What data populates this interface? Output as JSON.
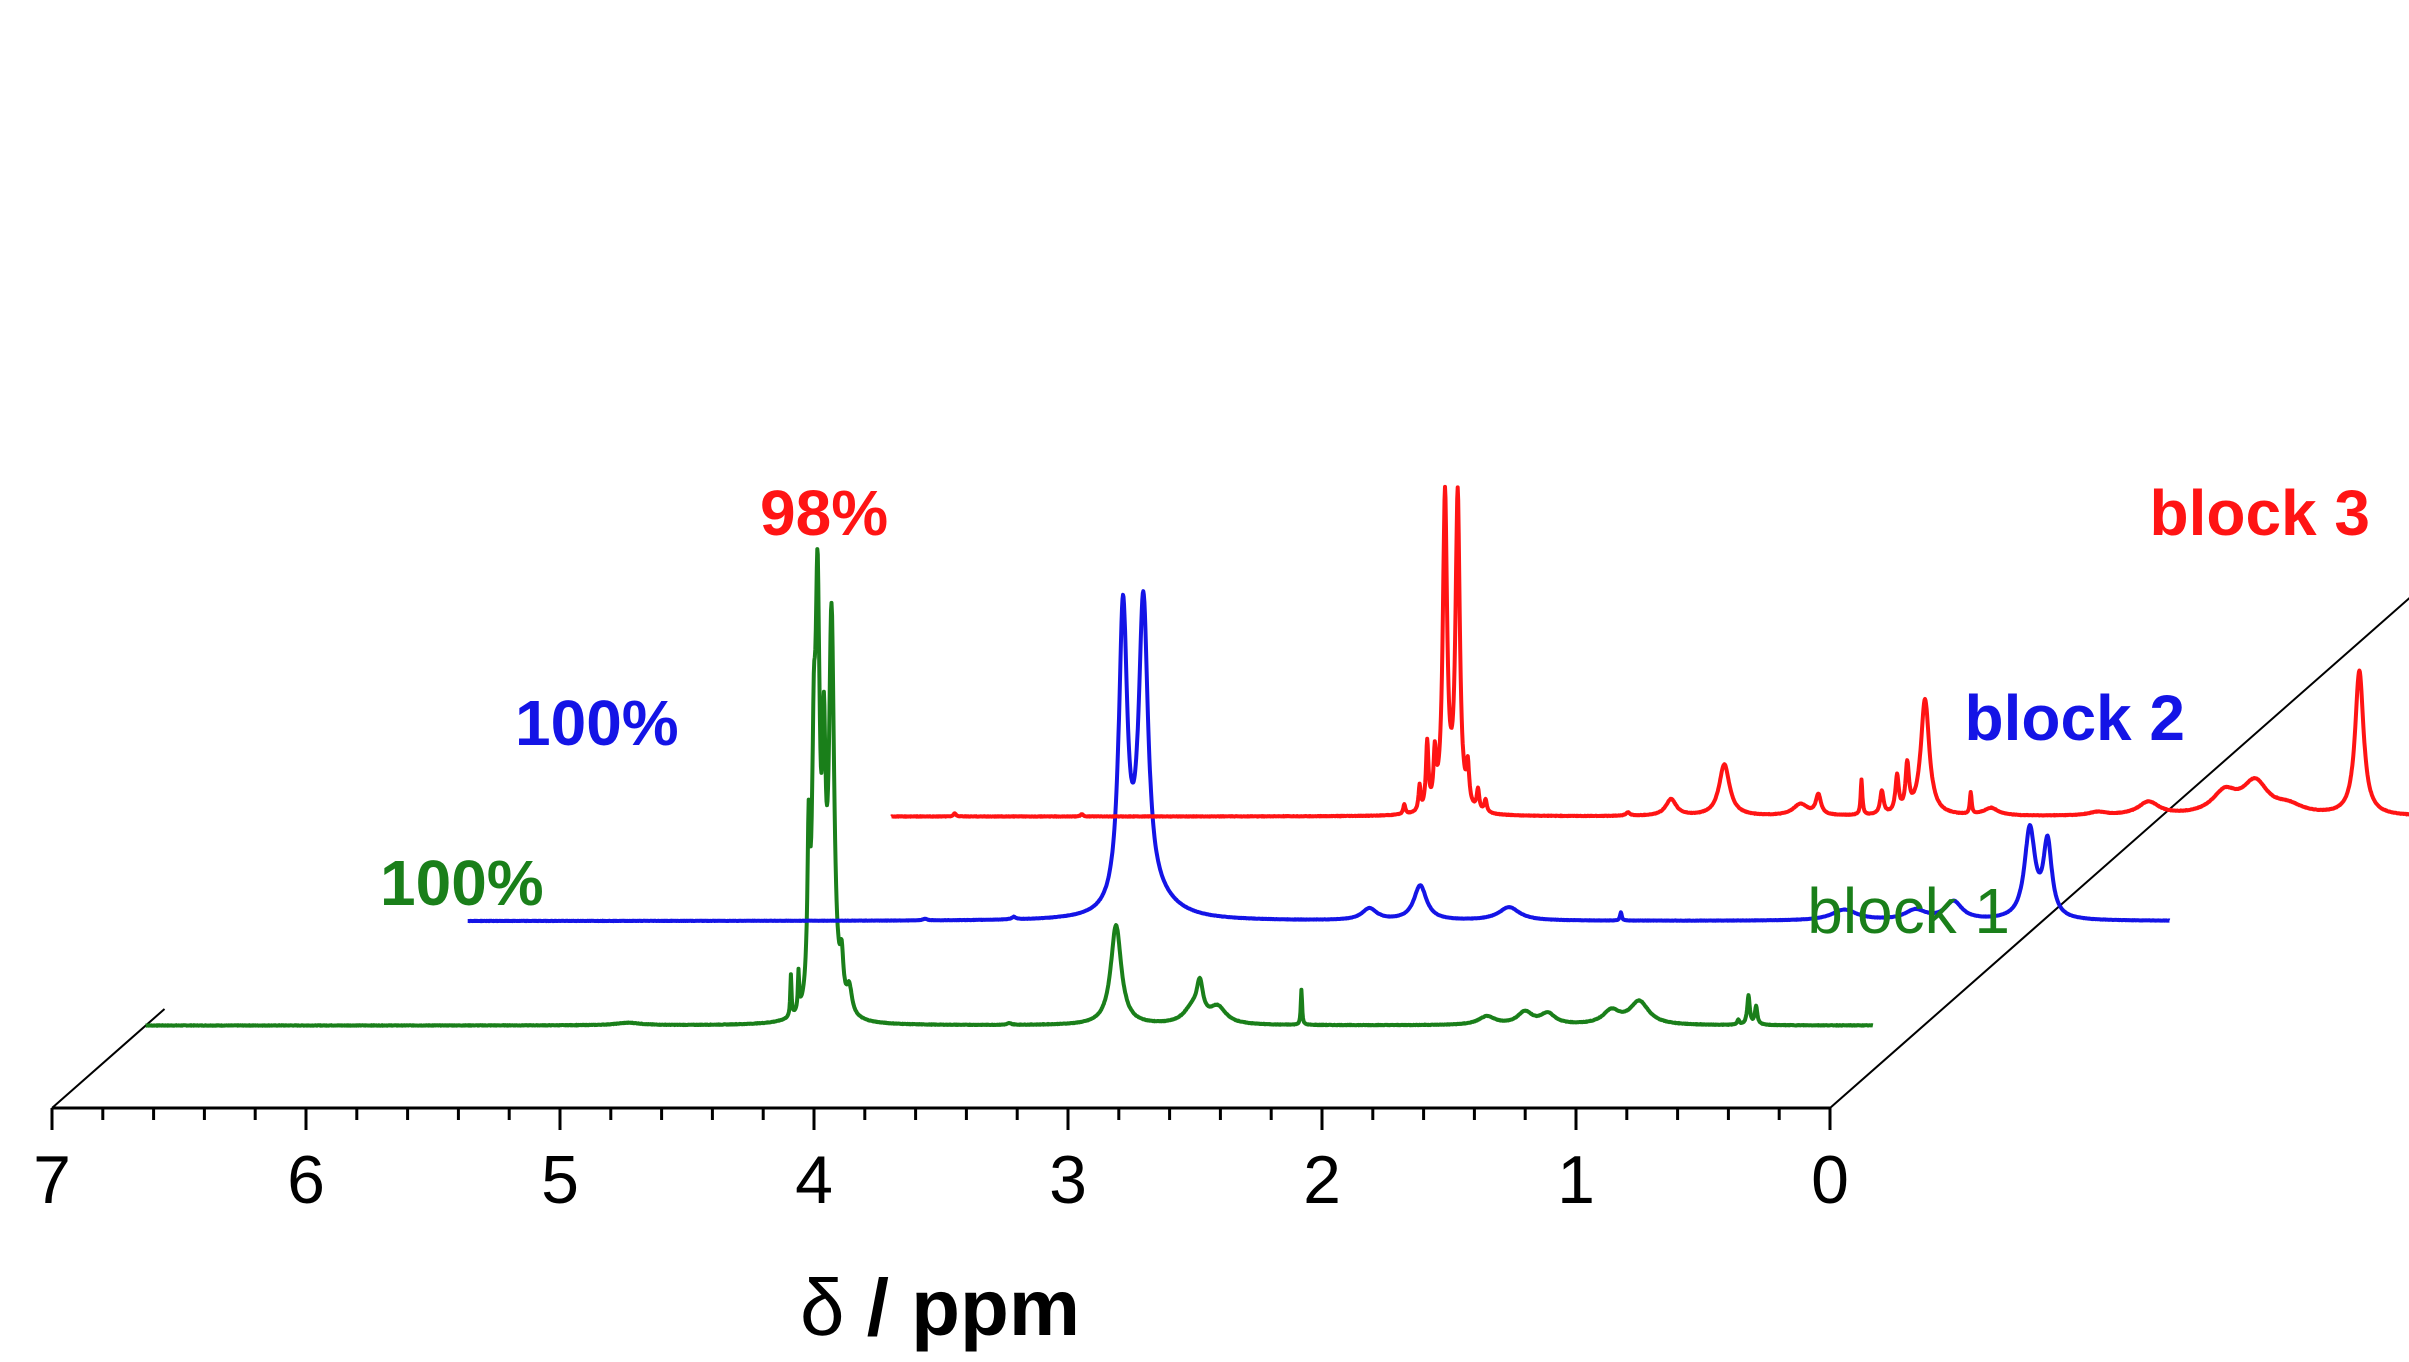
{
  "chart_data": {
    "type": "line",
    "subtype": "stacked-3d-spectra",
    "title": "",
    "xlabel": "δ / ppm",
    "xlabel_parts": {
      "symbol": "δ",
      "rest": " / ppm"
    },
    "ylabel": "",
    "xlim": [
      7,
      0
    ],
    "x_reversed": true,
    "x_ticks": [
      "7",
      "6",
      "5",
      "4",
      "3",
      "2",
      "1",
      "0"
    ],
    "grid": false,
    "series": [
      {
        "name": "block 1",
        "label_bold": false,
        "percent_label": "100%",
        "color": "#1a7f1a",
        "x_start": 7.0,
        "x_end": 0.2,
        "baseline_noise": 0.3,
        "peaks": [
          {
            "x": 5.1,
            "h": 3,
            "w": 0.06
          },
          {
            "x": 4.46,
            "h": 50,
            "w": 0.003
          },
          {
            "x": 4.43,
            "h": 45,
            "w": 0.003
          },
          {
            "x": 4.39,
            "h": 190,
            "w": 0.006
          },
          {
            "x": 4.37,
            "h": 240,
            "w": 0.008
          },
          {
            "x": 4.355,
            "h": 470,
            "w": 0.01
          },
          {
            "x": 4.33,
            "h": 260,
            "w": 0.008
          },
          {
            "x": 4.3,
            "h": 470,
            "w": 0.012
          },
          {
            "x": 4.26,
            "h": 50,
            "w": 0.008
          },
          {
            "x": 4.23,
            "h": 30,
            "w": 0.012
          },
          {
            "x": 3.6,
            "h": 2,
            "w": 0.01
          },
          {
            "x": 3.18,
            "h": 120,
            "w": 0.025
          },
          {
            "x": 2.88,
            "h": 18,
            "w": 0.04
          },
          {
            "x": 2.85,
            "h": 40,
            "w": 0.015
          },
          {
            "x": 2.78,
            "h": 20,
            "w": 0.04
          },
          {
            "x": 2.45,
            "h": 42,
            "w": 0.003
          },
          {
            "x": 1.72,
            "h": 10,
            "w": 0.04
          },
          {
            "x": 1.57,
            "h": 15,
            "w": 0.035
          },
          {
            "x": 1.48,
            "h": 13,
            "w": 0.035
          },
          {
            "x": 1.23,
            "h": 16,
            "w": 0.04
          },
          {
            "x": 1.12,
            "h": 28,
            "w": 0.045
          },
          {
            "x": 0.73,
            "h": 6,
            "w": 0.005
          },
          {
            "x": 0.69,
            "h": 35,
            "w": 0.006
          },
          {
            "x": 0.66,
            "h": 22,
            "w": 0.006
          }
        ]
      },
      {
        "name": "block 2",
        "label_bold": true,
        "percent_label": "100%",
        "color": "#1414e6",
        "x_start": 6.2,
        "x_end": -0.5,
        "baseline_noise": 0.2,
        "peaks": [
          {
            "x": 4.4,
            "h": 2,
            "w": 0.01
          },
          {
            "x": 4.05,
            "h": 3,
            "w": 0.01
          },
          {
            "x": 3.62,
            "h": 360,
            "w": 0.02
          },
          {
            "x": 3.54,
            "h": 360,
            "w": 0.022
          },
          {
            "x": 3.49,
            "h": 20,
            "w": 0.1
          },
          {
            "x": 2.65,
            "h": 14,
            "w": 0.035
          },
          {
            "x": 2.45,
            "h": 42,
            "w": 0.03
          },
          {
            "x": 2.1,
            "h": 16,
            "w": 0.05
          },
          {
            "x": 1.66,
            "h": 10,
            "w": 0.004
          },
          {
            "x": 0.78,
            "h": 13,
            "w": 0.06
          },
          {
            "x": 0.5,
            "h": 12,
            "w": 0.05
          },
          {
            "x": 0.35,
            "h": 22,
            "w": 0.04
          },
          {
            "x": 0.05,
            "h": 108,
            "w": 0.025
          },
          {
            "x": -0.02,
            "h": 90,
            "w": 0.02
          }
        ]
      },
      {
        "name": "block 3",
        "label_bold": true,
        "percent_label": "98%",
        "color": "#ff1414",
        "x_start": 5.0,
        "x_end": -1.7,
        "baseline_noise": 0.3,
        "peaks": [
          {
            "x": 4.75,
            "h": 4,
            "w": 0.005
          },
          {
            "x": 4.25,
            "h": 3,
            "w": 0.005
          },
          {
            "x": 2.98,
            "h": 12,
            "w": 0.005
          },
          {
            "x": 2.92,
            "h": 30,
            "w": 0.005
          },
          {
            "x": 2.89,
            "h": 80,
            "w": 0.006
          },
          {
            "x": 2.86,
            "h": 60,
            "w": 0.006
          },
          {
            "x": 2.82,
            "h": 380,
            "w": 0.01
          },
          {
            "x": 2.77,
            "h": 380,
            "w": 0.01
          },
          {
            "x": 2.73,
            "h": 45,
            "w": 0.006
          },
          {
            "x": 2.69,
            "h": 25,
            "w": 0.006
          },
          {
            "x": 2.66,
            "h": 15,
            "w": 0.006
          },
          {
            "x": 2.1,
            "h": 4,
            "w": 0.01
          },
          {
            "x": 1.93,
            "h": 20,
            "w": 0.025
          },
          {
            "x": 1.72,
            "h": 62,
            "w": 0.025
          },
          {
            "x": 1.42,
            "h": 14,
            "w": 0.035
          },
          {
            "x": 1.35,
            "h": 24,
            "w": 0.012
          },
          {
            "x": 1.18,
            "h": 42,
            "w": 0.004
          },
          {
            "x": 1.1,
            "h": 28,
            "w": 0.008
          },
          {
            "x": 1.04,
            "h": 44,
            "w": 0.008
          },
          {
            "x": 1.0,
            "h": 55,
            "w": 0.008
          },
          {
            "x": 0.93,
            "h": 140,
            "w": 0.02
          },
          {
            "x": 0.75,
            "h": 26,
            "w": 0.004
          },
          {
            "x": 0.67,
            "h": 9,
            "w": 0.035
          },
          {
            "x": 0.25,
            "h": 4,
            "w": 0.04
          },
          {
            "x": 0.05,
            "h": 16,
            "w": 0.05
          },
          {
            "x": -0.25,
            "h": 26,
            "w": 0.06
          },
          {
            "x": -0.37,
            "h": 38,
            "w": 0.06
          },
          {
            "x": -0.5,
            "h": 10,
            "w": 0.07
          },
          {
            "x": -0.78,
            "h": 174,
            "w": 0.02
          }
        ]
      }
    ]
  }
}
